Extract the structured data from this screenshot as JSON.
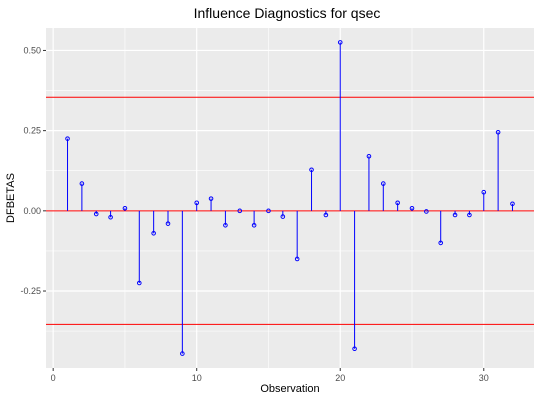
{
  "chart_data": {
    "type": "lollipop",
    "title": "Influence Diagnostics for qsec",
    "xlabel": "Observation",
    "ylabel": "DFBETAS",
    "xlim": [
      -0.5,
      33.5
    ],
    "ylim": [
      -0.49,
      0.57
    ],
    "x_ticks": [
      0,
      10,
      20,
      30
    ],
    "x_tick_labels": [
      "0",
      "10",
      "20",
      "30"
    ],
    "y_ticks": [
      -0.25,
      0,
      0.25,
      0.5
    ],
    "y_tick_labels": [
      "-0.25",
      "0.00",
      "0.25",
      "0.50"
    ],
    "threshold_lines": [
      0.354,
      -0.354
    ],
    "grid": true,
    "colors": {
      "panel": "#EBEBEB",
      "grid": "#FFFFFF",
      "stem": "#0000FF",
      "threshold": "#FF0000"
    },
    "series": [
      {
        "x": [
          1,
          2,
          3,
          4,
          5,
          6,
          7,
          8,
          9,
          10,
          11,
          12,
          13,
          14,
          15,
          16,
          17,
          18,
          19,
          20,
          21,
          22,
          23,
          24,
          25,
          26,
          27,
          28,
          29,
          30,
          31,
          32
        ],
        "values": [
          0.225,
          0.085,
          -0.01,
          -0.02,
          0.008,
          -0.225,
          -0.07,
          -0.04,
          -0.445,
          0.025,
          0.038,
          -0.045,
          0.0,
          -0.045,
          0.0,
          -0.018,
          -0.15,
          0.128,
          -0.013,
          0.525,
          -0.43,
          0.17,
          0.085,
          0.025,
          0.008,
          -0.002,
          -0.1,
          -0.013,
          -0.013,
          0.058,
          0.245,
          0.022
        ]
      }
    ]
  }
}
